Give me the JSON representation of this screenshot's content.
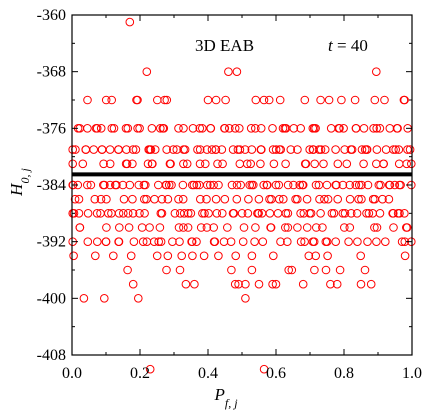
{
  "chart_data": {
    "type": "scatter",
    "title": "",
    "xlabel": "P",
    "xlabel_sub": "f, j",
    "ylabel": "H",
    "ylabel_sub": "0, j",
    "xlim": [
      0.0,
      1.0
    ],
    "ylim": [
      -408,
      -360
    ],
    "xticks": [
      "0.0",
      "0.2",
      "0.4",
      "0.6",
      "0.8",
      "1.0"
    ],
    "yticks": [
      "-360",
      "-368",
      "-376",
      "-384",
      "-392",
      "-400",
      "-408"
    ],
    "annotations": {
      "model": "3D EAB",
      "time_var": "t",
      "time_eq": " = 40"
    },
    "reference_line": {
      "y": -382.5
    },
    "marker": {
      "shape": "open-circle",
      "color": "#ff0000"
    },
    "grid": false,
    "legend": "none",
    "points": [
      [
        0.17,
        -361
      ],
      [
        0.22,
        -368
      ],
      [
        0.46,
        -368
      ],
      [
        0.485,
        -368
      ],
      [
        0.895,
        -368
      ],
      [
        0.23,
        -410
      ],
      [
        0.565,
        -410
      ],
      [
        0.035,
        -400
      ],
      [
        0.095,
        -400
      ],
      [
        0.195,
        -400
      ],
      [
        0.51,
        -400
      ],
      [
        0.18,
        -398
      ],
      [
        0.335,
        -398
      ],
      [
        0.36,
        -398
      ],
      [
        0.48,
        -398
      ],
      [
        0.49,
        -398
      ],
      [
        0.51,
        -398
      ],
      [
        0.55,
        -398
      ],
      [
        0.59,
        -398
      ],
      [
        0.6,
        -398
      ],
      [
        0.68,
        -398
      ],
      [
        0.76,
        -398
      ],
      [
        0.78,
        -398
      ],
      [
        0.85,
        -398
      ],
      [
        0.88,
        -398
      ]
    ],
    "row_pattern": [
      {
        "y": -372,
        "density": 0.55
      },
      {
        "y": -376,
        "density": 0.85
      },
      {
        "y": -379,
        "density": 1.0
      },
      {
        "y": -381,
        "density": 0.7
      },
      {
        "y": -384,
        "density": 1.0
      },
      {
        "y": -386,
        "density": 0.7
      },
      {
        "y": -388,
        "density": 0.9
      },
      {
        "y": -390,
        "density": 0.6
      },
      {
        "y": -392,
        "density": 0.75
      },
      {
        "y": -394,
        "density": 0.45
      },
      {
        "y": -396,
        "density": 0.35
      }
    ]
  }
}
